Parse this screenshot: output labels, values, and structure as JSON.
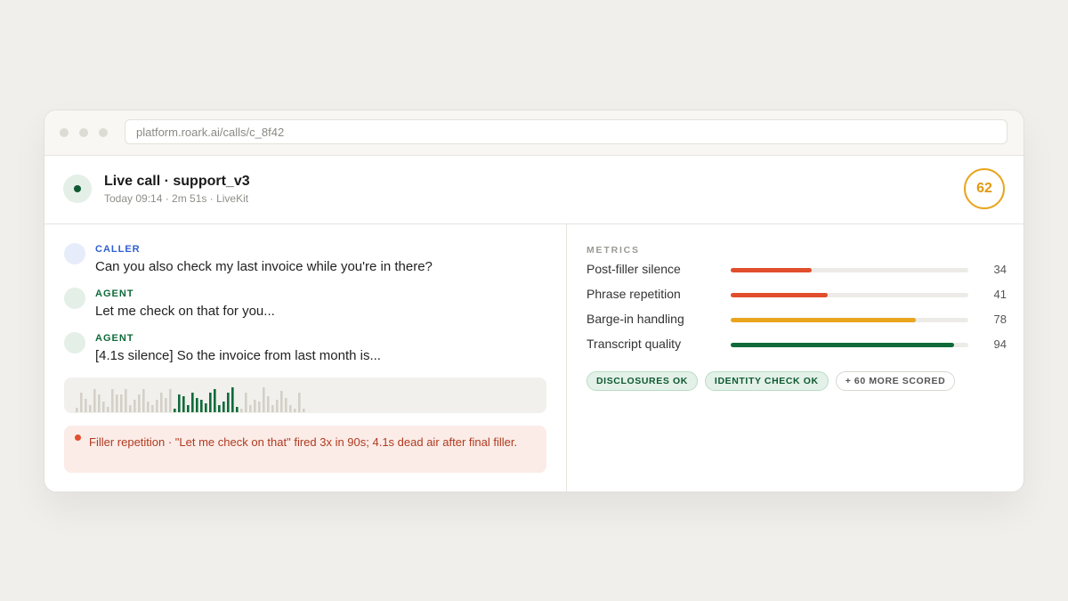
{
  "browser": {
    "url": "platform.roark.ai/calls/c_8f42"
  },
  "header": {
    "title": "Live call · support_v3",
    "subtitle": "Today 09:14 · 2m 51s · LiveKit",
    "score": 62
  },
  "transcript": [
    {
      "role": "CALLER",
      "text": "Can you also check my last invoice while you're in there?"
    },
    {
      "role": "AGENT",
      "text": "Let me check on that for you..."
    },
    {
      "role": "AGENT",
      "text": "[4.1s silence] So the invoice from last month is..."
    }
  ],
  "alert": {
    "text": "Filler repetition · \"Let me check on that\" fired 3x in 90s; 4.1s dead air after final filler."
  },
  "metrics": {
    "heading": "METRICS",
    "xlim": [
      0,
      100
    ],
    "items": [
      {
        "name": "Post-filler silence",
        "value": 34,
        "color": "#e04e2c"
      },
      {
        "name": "Phrase repetition",
        "value": 41,
        "color": "#e04e2c"
      },
      {
        "name": "Barge-in handling",
        "value": 78,
        "color": "#e9a51e"
      },
      {
        "name": "Transcript quality",
        "value": 94,
        "color": "#0f6a3a"
      }
    ]
  },
  "tags": [
    "DISCLOSURES OK",
    "IDENTITY CHECK OK",
    "+ 60 MORE SCORED"
  ]
}
